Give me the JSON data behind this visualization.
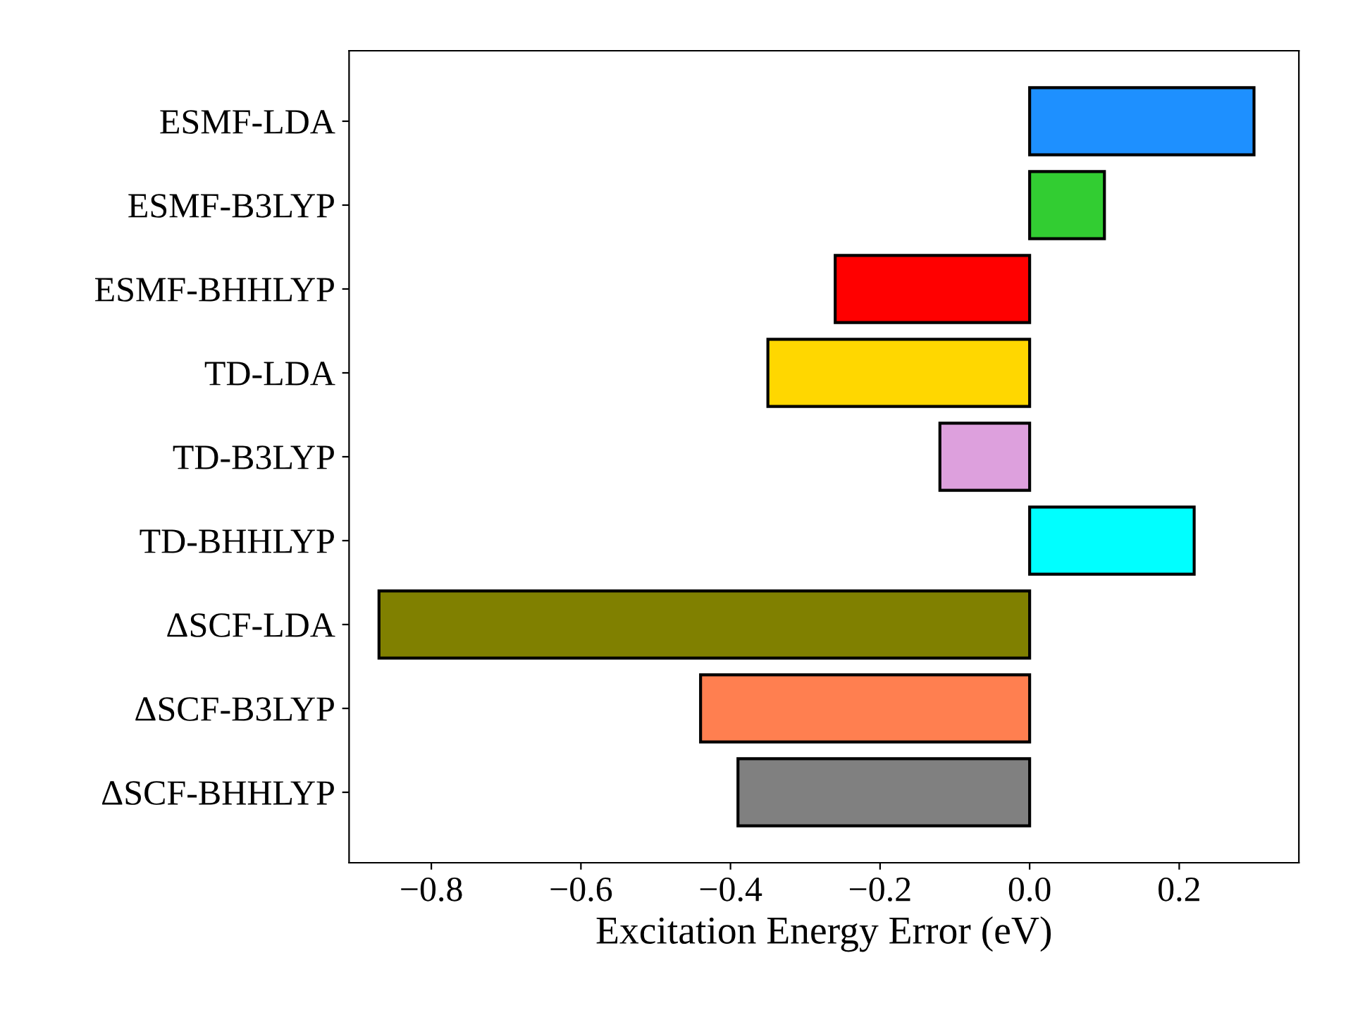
{
  "chart_data": {
    "type": "bar",
    "orientation": "horizontal",
    "xlabel": "Excitation Energy Error (eV)",
    "categories": [
      "ESMF-LDA",
      "ESMF-B3LYP",
      "ESMF-BHHLYP",
      "TD-LDA",
      "TD-B3LYP",
      "TD-BHHLYP",
      "ΔSCF-LDA",
      "ΔSCF-B3LYP",
      "ΔSCF-BHHLYP"
    ],
    "values": [
      0.3,
      0.1,
      -0.26,
      -0.35,
      -0.12,
      0.22,
      -0.87,
      -0.44,
      -0.39
    ],
    "colors": [
      "#1e90ff",
      "#32cd32",
      "#ff0000",
      "#ffd700",
      "#dda0dd",
      "#00ffff",
      "#808000",
      "#ff7f50",
      "#808080"
    ],
    "xlim": [
      -0.91,
      0.36
    ],
    "xticks": [
      {
        "value": -0.8,
        "label": "−0.8"
      },
      {
        "value": -0.6,
        "label": "−0.6"
      },
      {
        "value": -0.4,
        "label": "−0.4"
      },
      {
        "value": -0.2,
        "label": "−0.2"
      },
      {
        "value": 0.0,
        "label": "0.0"
      },
      {
        "value": 0.2,
        "label": "0.2"
      }
    ],
    "grid": false,
    "legend": false
  }
}
